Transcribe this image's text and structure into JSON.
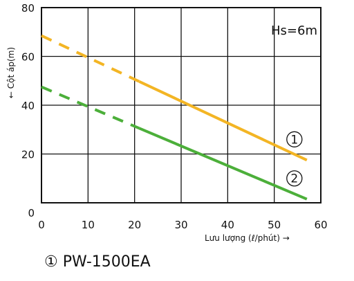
{
  "chart_data": {
    "type": "line",
    "xlabel": "Lưu lượng (ℓ/phút) →",
    "ylabel": "← Cột áp(m)",
    "xlim": [
      0,
      60
    ],
    "ylim": [
      0,
      80
    ],
    "x_ticks": [
      "0",
      "10",
      "20",
      "30",
      "40",
      "50",
      "60"
    ],
    "y_ticks": [
      "0",
      "20",
      "40",
      "60",
      "80"
    ],
    "grid": true,
    "annotation": "Hs=6m",
    "series": [
      {
        "marker": "①",
        "color": "#f3b524",
        "dashed_until_x": 21,
        "x": [
          0,
          57
        ],
        "y": [
          68.5,
          17.5
        ]
      },
      {
        "marker": "②",
        "color": "#4caf3a",
        "dashed_until_x": 21,
        "x": [
          0,
          57
        ],
        "y": [
          47.5,
          1.5
        ]
      }
    ]
  },
  "legend_text": "① PW-1500EA"
}
